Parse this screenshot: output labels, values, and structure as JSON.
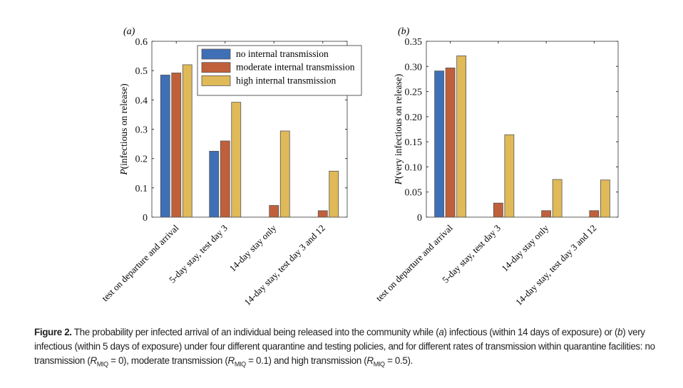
{
  "chart_data": [
    {
      "type": "bar",
      "panel_label": "(a)",
      "ylabel": "P(infectious on release)",
      "ylim": [
        0,
        0.6
      ],
      "yticks": [
        "0",
        "0.1",
        "0.2",
        "0.3",
        "0.4",
        "0.5",
        "0.6"
      ],
      "categories": [
        "test on departure and arrival",
        "5-day stay, test day 3",
        "14-day stay only",
        "14-day stay, test day 3 and 12"
      ],
      "legend_position": "top-right",
      "grid": false,
      "series": [
        {
          "name": "no internal transmission",
          "color": "#3f6fb5",
          "values": [
            0.485,
            0.225,
            0.0,
            0.0
          ]
        },
        {
          "name": "moderate internal transmission",
          "color": "#c0603a",
          "values": [
            0.492,
            0.26,
            0.04,
            0.022
          ]
        },
        {
          "name": "high internal transmission",
          "color": "#e0b958",
          "values": [
            0.52,
            0.392,
            0.294,
            0.157
          ]
        }
      ]
    },
    {
      "type": "bar",
      "panel_label": "(b)",
      "ylabel": "P(very infectious on release)",
      "ylim": [
        0,
        0.35
      ],
      "yticks": [
        "0",
        "0.05",
        "0.10",
        "0.15",
        "0.20",
        "0.25",
        "0.30",
        "0.35"
      ],
      "categories": [
        "test on departure and arrival",
        "5-day stay, test day 3",
        "14-day stay only",
        "14-day stay, test day 3 and 12"
      ],
      "grid": false,
      "series": [
        {
          "color": "#3f6fb5",
          "values": [
            0.291,
            0.0,
            0.0,
            0.0
          ]
        },
        {
          "color": "#c0603a",
          "values": [
            0.297,
            0.028,
            0.013,
            0.013
          ]
        },
        {
          "color": "#e0b958",
          "values": [
            0.321,
            0.164,
            0.075,
            0.074
          ]
        }
      ]
    }
  ],
  "caption": {
    "label": "Figure 2.",
    "p1": " The probability per infected arrival of an individual being released into the community while (",
    "a": "a",
    "p2": ") infectious (within 14 days of exposure) or (",
    "b": "b",
    "p3": ") very infectious (within 5 days of exposure) under four different quarantine and testing policies, and for different rates of transmission within quarantine facilities: no transmission (",
    "r": "R",
    "sub": "MIQ",
    "v1": " = 0), moderate transmission (",
    "v2": " = 0.1) and high transmission (",
    "v3": " = 0.5)."
  }
}
